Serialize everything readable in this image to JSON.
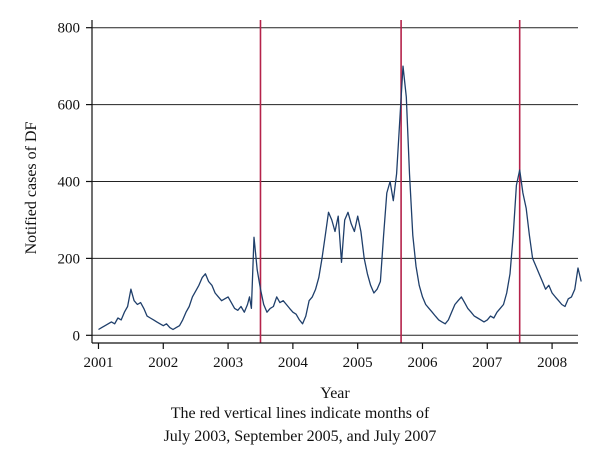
{
  "chart_data": {
    "type": "line",
    "title": "",
    "xlabel": "Year",
    "ylabel": "Notified cases of DF",
    "xlim": [
      2000.9,
      2008.4
    ],
    "ylim": [
      -20,
      820
    ],
    "yticks": [
      0,
      200,
      400,
      600,
      800
    ],
    "xticks": [
      2001,
      2002,
      2003,
      2004,
      2005,
      2006,
      2007,
      2008
    ],
    "xtick_labels": [
      "2001",
      "2002",
      "2003",
      "2004",
      "2005",
      "2006",
      "2007",
      "2008"
    ],
    "ytick_labels": [
      "0",
      "200",
      "400",
      "600",
      "800"
    ],
    "grid": "horizontal",
    "series": [
      {
        "color": "#1f3f6b",
        "x": [
          2001.0,
          2001.05,
          2001.1,
          2001.15,
          2001.2,
          2001.25,
          2001.3,
          2001.35,
          2001.4,
          2001.45,
          2001.5,
          2001.55,
          2001.6,
          2001.65,
          2001.7,
          2001.75,
          2001.8,
          2001.85,
          2001.9,
          2001.95,
          2002.0,
          2002.05,
          2002.1,
          2002.15,
          2002.2,
          2002.25,
          2002.3,
          2002.35,
          2002.4,
          2002.45,
          2002.5,
          2002.55,
          2002.6,
          2002.65,
          2002.7,
          2002.75,
          2002.8,
          2002.85,
          2002.9,
          2002.95,
          2003.0,
          2003.05,
          2003.1,
          2003.15,
          2003.2,
          2003.25,
          2003.3,
          2003.33,
          2003.36,
          2003.4,
          2003.45,
          2003.5,
          2003.55,
          2003.6,
          2003.65,
          2003.7,
          2003.75,
          2003.8,
          2003.85,
          2003.9,
          2003.95,
          2004.0,
          2004.05,
          2004.1,
          2004.15,
          2004.2,
          2004.25,
          2004.3,
          2004.35,
          2004.4,
          2004.45,
          2004.5,
          2004.55,
          2004.6,
          2004.65,
          2004.7,
          2004.75,
          2004.8,
          2004.85,
          2004.9,
          2004.95,
          2005.0,
          2005.05,
          2005.1,
          2005.15,
          2005.2,
          2005.25,
          2005.3,
          2005.35,
          2005.4,
          2005.45,
          2005.5,
          2005.55,
          2005.6,
          2005.65,
          2005.7,
          2005.75,
          2005.8,
          2005.85,
          2005.9,
          2005.95,
          2006.0,
          2006.05,
          2006.1,
          2006.15,
          2006.2,
          2006.25,
          2006.3,
          2006.35,
          2006.4,
          2006.45,
          2006.5,
          2006.55,
          2006.6,
          2006.65,
          2006.7,
          2006.75,
          2006.8,
          2006.85,
          2006.9,
          2006.95,
          2007.0,
          2007.05,
          2007.1,
          2007.15,
          2007.2,
          2007.25,
          2007.3,
          2007.35,
          2007.4,
          2007.45,
          2007.5,
          2007.55,
          2007.6,
          2007.65,
          2007.7,
          2007.75,
          2007.8,
          2007.85,
          2007.9,
          2007.95,
          2008.0,
          2008.05,
          2008.1,
          2008.15,
          2008.2,
          2008.25,
          2008.3,
          2008.35,
          2008.4,
          2008.45
        ],
        "y": [
          15,
          20,
          25,
          30,
          35,
          30,
          45,
          40,
          60,
          75,
          120,
          90,
          80,
          85,
          70,
          50,
          45,
          40,
          35,
          30,
          25,
          30,
          20,
          15,
          20,
          25,
          40,
          60,
          75,
          100,
          115,
          130,
          150,
          160,
          140,
          130,
          110,
          100,
          90,
          95,
          100,
          85,
          70,
          65,
          75,
          60,
          80,
          100,
          70,
          255,
          170,
          120,
          80,
          60,
          70,
          75,
          100,
          85,
          90,
          80,
          70,
          60,
          55,
          40,
          30,
          50,
          90,
          100,
          120,
          150,
          200,
          260,
          320,
          300,
          270,
          310,
          190,
          300,
          320,
          290,
          270,
          310,
          270,
          200,
          160,
          130,
          110,
          120,
          140,
          260,
          370,
          400,
          350,
          420,
          560,
          700,
          620,
          420,
          260,
          180,
          130,
          100,
          80,
          70,
          60,
          50,
          40,
          35,
          30,
          40,
          60,
          80,
          90,
          100,
          85,
          70,
          60,
          50,
          45,
          40,
          35,
          40,
          50,
          45,
          60,
          70,
          80,
          110,
          160,
          260,
          390,
          430,
          370,
          330,
          260,
          200,
          180,
          160,
          140,
          120,
          130,
          110,
          100,
          90,
          80,
          75,
          95,
          100,
          120,
          175,
          140
        ]
      }
    ],
    "vertical_lines": [
      2003.5,
      2005.67,
      2007.5
    ],
    "vertical_line_color": "#b5224a",
    "line_color": "#1f3f6b"
  },
  "notes": {
    "line1": "The red vertical lines indicate months of",
    "line2": "July 2003, September 2005, and July 2007"
  }
}
